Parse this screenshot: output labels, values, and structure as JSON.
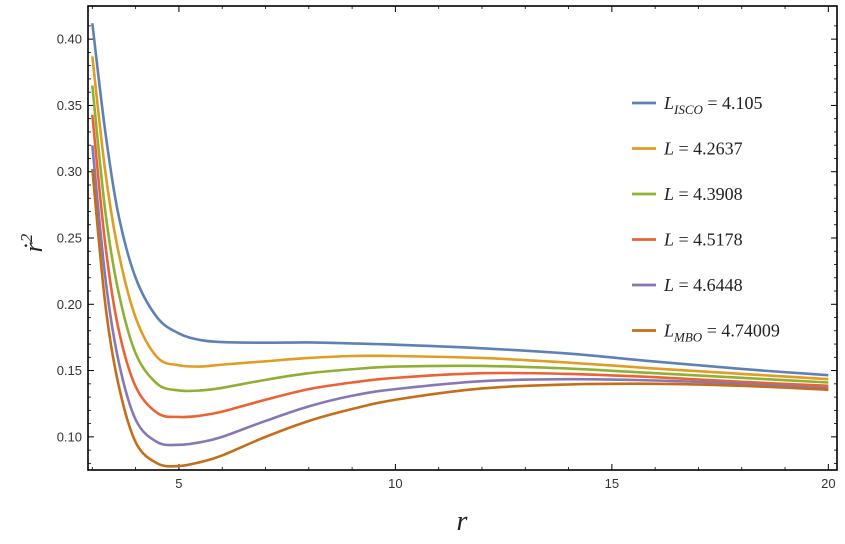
{
  "chart_data": {
    "type": "line",
    "title": "",
    "xlabel": "r",
    "ylabel_base": "ṙ",
    "ylabel_sup": "2",
    "xlim": [
      2.9,
      20.2
    ],
    "ylim": [
      0.075,
      0.425
    ],
    "xticks": [
      5,
      10,
      15,
      20
    ],
    "yticks": [
      0.1,
      0.15,
      0.2,
      0.25,
      0.3,
      0.35,
      0.4
    ],
    "ytick_labels": [
      "0.10",
      "0.15",
      "0.20",
      "0.25",
      "0.30",
      "0.35",
      "0.40"
    ],
    "grid": false,
    "legend_position": "right",
    "series": [
      {
        "legend": {
          "main": "L",
          "sub": "ISCO",
          "rest": " = 4.105"
        },
        "color": "#5E81B5",
        "x": [
          3.0,
          3.3,
          3.6,
          4.0,
          4.5,
          5.0,
          5.5,
          6.0,
          7.0,
          8.0,
          9.0,
          10.0,
          12.0,
          14.0,
          16.0,
          18.0,
          20.0
        ],
        "y": [
          0.412,
          0.33,
          0.268,
          0.22,
          0.19,
          0.178,
          0.173,
          0.1715,
          0.171,
          0.1712,
          0.1705,
          0.1695,
          0.1668,
          0.1628,
          0.1568,
          0.1512,
          0.1465
        ]
      },
      {
        "legend": {
          "main": "L",
          "sub": "",
          "rest": " = 4.2637"
        },
        "color": "#E19C24",
        "x": [
          3.0,
          3.3,
          3.6,
          4.0,
          4.5,
          5.0,
          5.5,
          6.0,
          7.0,
          8.0,
          9.0,
          10.0,
          12.0,
          14.0,
          16.0,
          18.0,
          20.0
        ],
        "y": [
          0.387,
          0.3,
          0.24,
          0.19,
          0.16,
          0.154,
          0.153,
          0.1545,
          0.157,
          0.1595,
          0.161,
          0.161,
          0.1595,
          0.156,
          0.1515,
          0.1475,
          0.1435
        ]
      },
      {
        "legend": {
          "main": "L",
          "sub": "",
          "rest": " = 4.3908"
        },
        "color": "#8FB032",
        "x": [
          3.0,
          3.3,
          3.6,
          4.0,
          4.5,
          5.0,
          5.5,
          6.0,
          7.0,
          8.0,
          9.0,
          10.0,
          12.0,
          14.0,
          16.0,
          18.0,
          20.0
        ],
        "y": [
          0.365,
          0.27,
          0.21,
          0.163,
          0.14,
          0.135,
          0.135,
          0.137,
          0.143,
          0.148,
          0.151,
          0.153,
          0.1535,
          0.1515,
          0.148,
          0.1445,
          0.141
        ]
      },
      {
        "legend": {
          "main": "L",
          "sub": "",
          "rest": " = 4.5178"
        },
        "color": "#EB6235",
        "x": [
          3.0,
          3.3,
          3.6,
          4.0,
          4.5,
          5.0,
          5.5,
          6.0,
          7.0,
          8.0,
          9.0,
          10.0,
          12.0,
          14.0,
          16.0,
          18.0,
          20.0
        ],
        "y": [
          0.343,
          0.245,
          0.182,
          0.138,
          0.118,
          0.115,
          0.116,
          0.119,
          0.128,
          0.136,
          0.141,
          0.1445,
          0.148,
          0.1475,
          0.145,
          0.1415,
          0.1385
        ]
      },
      {
        "legend": {
          "main": "L",
          "sub": "",
          "rest": " = 4.6448"
        },
        "color": "#8778B3",
        "x": [
          3.0,
          3.3,
          3.6,
          4.0,
          4.5,
          5.0,
          5.5,
          6.0,
          7.0,
          8.0,
          9.0,
          10.0,
          12.0,
          14.0,
          16.0,
          18.0,
          20.0
        ],
        "y": [
          0.32,
          0.22,
          0.158,
          0.113,
          0.096,
          0.094,
          0.096,
          0.1,
          0.112,
          0.123,
          0.131,
          0.136,
          0.142,
          0.1435,
          0.1425,
          0.14,
          0.1365
        ]
      },
      {
        "legend": {
          "main": "L",
          "sub": "MBO",
          "rest": " = 4.74009"
        },
        "color": "#C56E1A",
        "x": [
          3.0,
          3.3,
          3.6,
          4.0,
          4.5,
          5.0,
          5.5,
          6.0,
          7.0,
          8.0,
          9.0,
          10.0,
          12.0,
          14.0,
          16.0,
          18.0,
          20.0
        ],
        "y": [
          0.302,
          0.2,
          0.14,
          0.096,
          0.08,
          0.078,
          0.081,
          0.086,
          0.1,
          0.112,
          0.121,
          0.128,
          0.1365,
          0.1395,
          0.14,
          0.1385,
          0.1355
        ]
      }
    ]
  }
}
